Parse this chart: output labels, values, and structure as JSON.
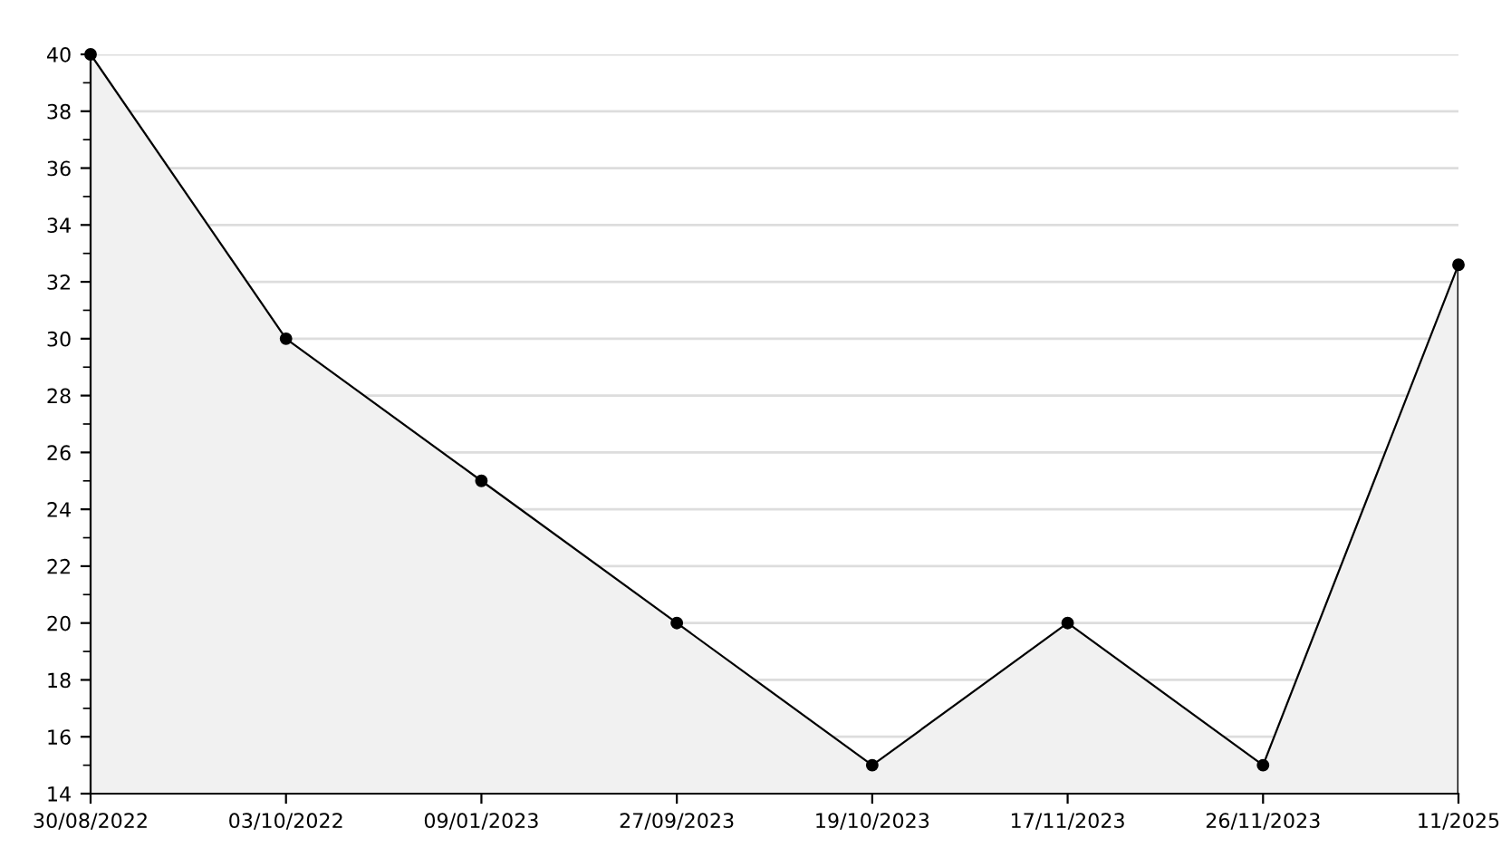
{
  "chart_data": {
    "type": "area",
    "categories": [
      "30/08/2022",
      "03/10/2022",
      "09/01/2023",
      "27/09/2023",
      "19/10/2023",
      "17/11/2023",
      "26/11/2023",
      "11/2025"
    ],
    "series": [
      {
        "color": "#000000",
        "values": [
          40,
          30,
          25,
          20,
          15,
          20,
          15,
          32.6
        ]
      }
    ],
    "ylim": [
      14,
      40
    ],
    "yticks": [
      14,
      16,
      18,
      20,
      22,
      24,
      26,
      28,
      30,
      32,
      34,
      36,
      38,
      40
    ],
    "grid": "y",
    "marker": "circle",
    "line_style": "solid",
    "legend": false
  }
}
